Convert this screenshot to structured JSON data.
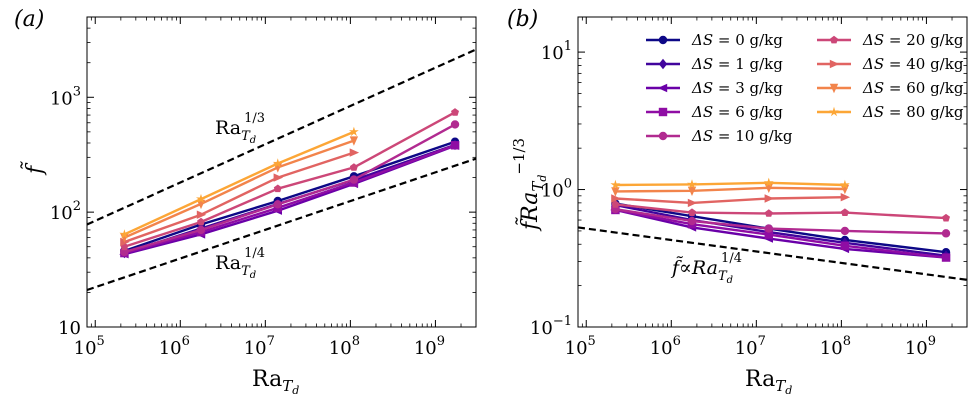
{
  "chart_data": [
    {
      "type": "line",
      "panel_label": "(a)",
      "xscale": "log",
      "yscale": "log",
      "xlim": [
        80000,
        3000000000
      ],
      "ylim": [
        10,
        5000
      ],
      "xlabel": "Ra",
      "xlabel_sub": "T",
      "xlabel_subsub": "d",
      "ylabel": "f̃",
      "xticks": [
        {
          "value": 100000,
          "base": "10",
          "exp": "5"
        },
        {
          "value": 1000000,
          "base": "10",
          "exp": "6"
        },
        {
          "value": 10000000,
          "base": "10",
          "exp": "7"
        },
        {
          "value": 100000000,
          "base": "10",
          "exp": "8"
        },
        {
          "value": 1000000000,
          "base": "10",
          "exp": "9"
        }
      ],
      "yticks": [
        {
          "value": 10,
          "base": "10",
          "exp": ""
        },
        {
          "value": 100,
          "base": "10",
          "exp": "2"
        },
        {
          "value": 1000,
          "base": "10",
          "exp": "3"
        }
      ],
      "x": [
        220000,
        1750000,
        14000000,
        110000000,
        1700000000
      ],
      "series": [
        {
          "name": "0",
          "color": "#0d0887",
          "marker": "circle",
          "values": [
            46,
            78,
            125,
            205,
            410
          ]
        },
        {
          "name": "1",
          "color": "#41049d",
          "marker": "diamond",
          "values": [
            44,
            72,
            118,
            190,
            385
          ]
        },
        {
          "name": "3",
          "color": "#6a00a8",
          "marker": "tri-left",
          "values": [
            43,
            64,
            103,
            176,
            378
          ]
        },
        {
          "name": "6",
          "color": "#8f0da4",
          "marker": "square",
          "values": [
            44,
            67,
            109,
            181,
            382
          ]
        },
        {
          "name": "10",
          "color": "#b12a90",
          "marker": "circle",
          "values": [
            45,
            70,
            117,
            192,
            580
          ]
        },
        {
          "name": "20",
          "color": "#cc4778",
          "marker": "pentagon",
          "values": [
            50,
            82,
            160,
            245,
            740
          ]
        },
        {
          "name": "40",
          "color": "#e16462",
          "marker": "tri-right",
          "values": [
            55,
            95,
            200,
            330,
            null
          ]
        },
        {
          "name": "60",
          "color": "#f2844b",
          "marker": "tri-down",
          "values": [
            60,
            118,
            245,
            420,
            null
          ]
        },
        {
          "name": "80",
          "color": "#fca636",
          "marker": "star",
          "values": [
            64,
            130,
            265,
            500,
            null
          ]
        }
      ],
      "reference_lines": [
        {
          "label": "Ra",
          "sub": "T",
          "subsub": "d",
          "exp": "1/3",
          "slope": 0.3333,
          "x0": 80000,
          "y0": 78
        },
        {
          "label": "Ra",
          "sub": "T",
          "subsub": "d",
          "exp": "1/4",
          "slope": 0.25,
          "x0": 80000,
          "y0": 21
        }
      ]
    },
    {
      "type": "line",
      "panel_label": "(b)",
      "xscale": "log",
      "yscale": "log",
      "xlim": [
        80000,
        3000000000
      ],
      "ylim": [
        0.1,
        18
      ],
      "xlabel": "Ra",
      "xlabel_sub": "T",
      "xlabel_subsub": "d",
      "ylabel": "f̃Ra",
      "ylabel_sub": "T",
      "ylabel_subsub": "d",
      "ylabel_exp": "−1/3",
      "xticks": [
        {
          "value": 100000,
          "base": "10",
          "exp": "5"
        },
        {
          "value": 1000000,
          "base": "10",
          "exp": "6"
        },
        {
          "value": 10000000,
          "base": "10",
          "exp": "7"
        },
        {
          "value": 100000000,
          "base": "10",
          "exp": "8"
        },
        {
          "value": 1000000000,
          "base": "10",
          "exp": "9"
        }
      ],
      "yticks": [
        {
          "value": 0.1,
          "base": "10",
          "exp": "−1"
        },
        {
          "value": 1,
          "base": "10",
          "exp": "0"
        },
        {
          "value": 10,
          "base": "10",
          "exp": "1"
        }
      ],
      "x": [
        220000,
        1750000,
        14000000,
        110000000,
        1700000000
      ],
      "series": [
        {
          "name": "0",
          "color": "#0d0887",
          "marker": "circle",
          "values": [
            0.79,
            0.64,
            0.52,
            0.43,
            0.35
          ]
        },
        {
          "name": "1",
          "color": "#41049d",
          "marker": "diamond",
          "values": [
            0.77,
            0.6,
            0.49,
            0.41,
            0.33
          ]
        },
        {
          "name": "3",
          "color": "#6a00a8",
          "marker": "tri-left",
          "values": [
            0.71,
            0.53,
            0.44,
            0.37,
            0.32
          ]
        },
        {
          "name": "6",
          "color": "#8f0da4",
          "marker": "square",
          "values": [
            0.71,
            0.56,
            0.47,
            0.39,
            0.32
          ]
        },
        {
          "name": "10",
          "color": "#b12a90",
          "marker": "circle",
          "values": [
            0.72,
            0.59,
            0.52,
            0.5,
            0.48
          ]
        },
        {
          "name": "20",
          "color": "#cc4778",
          "marker": "pentagon",
          "values": [
            0.78,
            0.68,
            0.67,
            0.68,
            0.62
          ]
        },
        {
          "name": "40",
          "color": "#e16462",
          "marker": "tri-right",
          "values": [
            0.86,
            0.8,
            0.86,
            0.88,
            null
          ]
        },
        {
          "name": "60",
          "color": "#f2844b",
          "marker": "tri-down",
          "values": [
            0.97,
            0.98,
            1.03,
            1.01,
            null
          ]
        },
        {
          "name": "80",
          "color": "#fca636",
          "marker": "star",
          "values": [
            1.08,
            1.09,
            1.12,
            1.08,
            null
          ]
        }
      ],
      "reference_lines": [
        {
          "label": "f̃∝Ra",
          "sub": "T",
          "subsub": "d",
          "exp": "1/4",
          "slope": -0.0833,
          "x0": 80000,
          "y0": 0.53
        }
      ],
      "legend": {
        "placement": "upper-right",
        "columns": 2,
        "prefix": "ΔS",
        "equals": "=",
        "unit": "g/kg"
      }
    }
  ]
}
